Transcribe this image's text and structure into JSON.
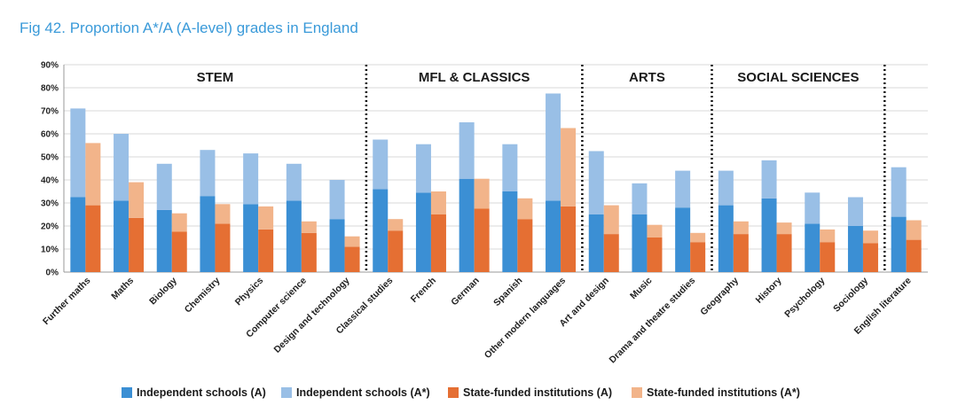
{
  "title": "Fig 42. Proportion A*/A (A-level) grades in England",
  "colors": {
    "independent_a": "#3b8fd4",
    "independent_astar": "#99bfe6",
    "state_a": "#e56f33",
    "state_astar": "#f2b48a",
    "grid": "#d9d9d9",
    "title": "#3a9ad9"
  },
  "legend": [
    {
      "label": "Independent schools (A)",
      "color_key": "independent_a"
    },
    {
      "label": "Independent schools (A*)",
      "color_key": "independent_astar"
    },
    {
      "label": "State-funded institutions (A)",
      "color_key": "state_a"
    },
    {
      "label": "State-funded institutions (A*)",
      "color_key": "state_astar"
    }
  ],
  "chart_data": {
    "type": "bar",
    "stacked": true,
    "grouped": true,
    "ylim": [
      0,
      90
    ],
    "y_ticks": [
      "0%",
      "10%",
      "20%",
      "30%",
      "40%",
      "50%",
      "60%",
      "70%",
      "80%",
      "90%"
    ],
    "grid": true,
    "legend_position": "bottom",
    "groups": [
      {
        "label": "STEM",
        "count": 7
      },
      {
        "label": "MFL & CLASSICS",
        "count": 5
      },
      {
        "label": "ARTS",
        "count": 3
      },
      {
        "label": "SOCIAL SCIENCES",
        "count": 4
      },
      {
        "label": "",
        "count": 1
      }
    ],
    "categories": [
      "Further maths",
      "Maths",
      "Biology",
      "Chemistry",
      "Physics",
      "Computer science",
      "Design and technology",
      "Classical studies",
      "French",
      "German",
      "Spanish",
      "Other modern languages",
      "Art and design",
      "Music",
      "Drama and theatre studies",
      "Geography",
      "History",
      "Psychology",
      "Sociology",
      "English literature"
    ],
    "series": [
      {
        "name": "Independent schools (A)",
        "stack": "independent",
        "values": [
          32.5,
          31,
          27,
          33,
          29.5,
          31,
          23,
          36,
          34.5,
          40.5,
          35,
          31,
          25,
          25,
          28,
          29,
          32,
          21,
          20,
          24
        ]
      },
      {
        "name": "Independent schools (A*)",
        "stack": "independent",
        "values": [
          38.5,
          29,
          20,
          20,
          22,
          16,
          17,
          21.5,
          21,
          24.5,
          20.5,
          46.5,
          27.5,
          13.5,
          16,
          15,
          16.5,
          13.5,
          12.5,
          21.5
        ]
      },
      {
        "name": "State-funded institutions (A)",
        "stack": "state",
        "values": [
          29,
          23.5,
          17.5,
          21,
          18.5,
          17,
          11,
          18,
          25,
          27.5,
          23,
          28.5,
          16.5,
          15,
          13,
          16.5,
          16.5,
          13,
          12.5,
          14
        ]
      },
      {
        "name": "State-funded institutions (A*)",
        "stack": "state",
        "values": [
          27,
          15.5,
          8,
          8.5,
          10,
          5,
          4.5,
          5,
          10,
          13,
          9,
          34,
          12.5,
          5.5,
          4,
          5.5,
          5,
          5.5,
          5.5,
          8.5
        ]
      }
    ]
  }
}
